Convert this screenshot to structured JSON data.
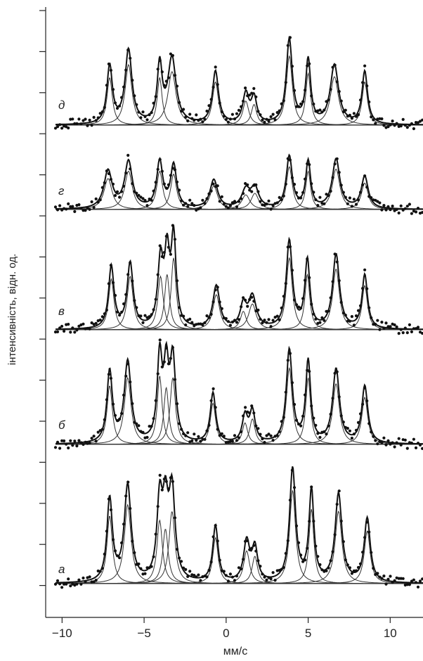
{
  "chart_data": {
    "type": "line",
    "xlabel": "мм/с",
    "ylabel": "інтенсивність, відн. од.",
    "xlim": [
      -11,
      12
    ],
    "x_ticks": [
      -10,
      -5,
      0,
      5,
      10
    ],
    "x_tick_labels": [
      "−10",
      "−5",
      "0",
      "5",
      "10"
    ],
    "grid": false,
    "series": [
      {
        "name": "а",
        "peaks": [
          {
            "x": -7.1,
            "h": 0.62,
            "w": 0.2
          },
          {
            "x": -6.0,
            "h": 0.72,
            "w": 0.25
          },
          {
            "x": -4.05,
            "h": 0.58,
            "w": 0.2
          },
          {
            "x": -3.7,
            "h": 0.5,
            "w": 0.2
          },
          {
            "x": -3.3,
            "h": 0.66,
            "w": 0.22
          },
          {
            "x": -0.65,
            "h": 0.42,
            "w": 0.2
          },
          {
            "x": 1.25,
            "h": 0.3,
            "w": 0.22
          },
          {
            "x": 1.75,
            "h": 0.25,
            "w": 0.2
          },
          {
            "x": 4.05,
            "h": 0.85,
            "w": 0.22
          },
          {
            "x": 5.2,
            "h": 0.68,
            "w": 0.18
          },
          {
            "x": 6.85,
            "h": 0.66,
            "w": 0.25
          },
          {
            "x": 8.6,
            "h": 0.48,
            "w": 0.22
          }
        ]
      },
      {
        "name": "б",
        "peaks": [
          {
            "x": -7.1,
            "h": 0.6,
            "w": 0.2
          },
          {
            "x": -6.0,
            "h": 0.68,
            "w": 0.25
          },
          {
            "x": -4.05,
            "h": 0.7,
            "w": 0.18
          },
          {
            "x": -3.65,
            "h": 0.58,
            "w": 0.18
          },
          {
            "x": -3.25,
            "h": 0.68,
            "w": 0.2
          },
          {
            "x": -0.8,
            "h": 0.42,
            "w": 0.2
          },
          {
            "x": 1.15,
            "h": 0.22,
            "w": 0.2
          },
          {
            "x": 1.6,
            "h": 0.26,
            "w": 0.2
          },
          {
            "x": 3.85,
            "h": 0.78,
            "w": 0.22
          },
          {
            "x": 5.0,
            "h": 0.68,
            "w": 0.18
          },
          {
            "x": 6.7,
            "h": 0.62,
            "w": 0.25
          },
          {
            "x": 8.45,
            "h": 0.48,
            "w": 0.22
          }
        ]
      },
      {
        "name": "в",
        "peaks": [
          {
            "x": -7.0,
            "h": 0.55,
            "w": 0.2
          },
          {
            "x": -5.85,
            "h": 0.58,
            "w": 0.22
          },
          {
            "x": -4.0,
            "h": 0.58,
            "w": 0.2
          },
          {
            "x": -3.6,
            "h": 0.6,
            "w": 0.18
          },
          {
            "x": -3.2,
            "h": 0.78,
            "w": 0.18
          },
          {
            "x": -0.6,
            "h": 0.38,
            "w": 0.25
          },
          {
            "x": 1.05,
            "h": 0.2,
            "w": 0.22
          },
          {
            "x": 1.6,
            "h": 0.28,
            "w": 0.28
          },
          {
            "x": 3.85,
            "h": 0.78,
            "w": 0.22
          },
          {
            "x": 4.95,
            "h": 0.6,
            "w": 0.18
          },
          {
            "x": 6.7,
            "h": 0.66,
            "w": 0.25
          },
          {
            "x": 8.45,
            "h": 0.48,
            "w": 0.2
          }
        ]
      },
      {
        "name": "г",
        "peaks": [
          {
            "x": -7.2,
            "h": 0.42,
            "w": 0.3
          },
          {
            "x": -5.95,
            "h": 0.52,
            "w": 0.28
          },
          {
            "x": -4.05,
            "h": 0.52,
            "w": 0.22
          },
          {
            "x": -3.2,
            "h": 0.48,
            "w": 0.22
          },
          {
            "x": -0.75,
            "h": 0.32,
            "w": 0.28
          },
          {
            "x": 1.2,
            "h": 0.2,
            "w": 0.3
          },
          {
            "x": 1.75,
            "h": 0.22,
            "w": 0.28
          },
          {
            "x": 3.85,
            "h": 0.58,
            "w": 0.22
          },
          {
            "x": 5.0,
            "h": 0.52,
            "w": 0.18
          },
          {
            "x": 6.7,
            "h": 0.55,
            "w": 0.28
          },
          {
            "x": 8.45,
            "h": 0.36,
            "w": 0.25
          }
        ]
      },
      {
        "name": "д",
        "peaks": [
          {
            "x": -7.1,
            "h": 0.55,
            "w": 0.2
          },
          {
            "x": -5.95,
            "h": 0.7,
            "w": 0.25
          },
          {
            "x": -4.05,
            "h": 0.55,
            "w": 0.18
          },
          {
            "x": -3.3,
            "h": 0.62,
            "w": 0.3
          },
          {
            "x": -0.65,
            "h": 0.5,
            "w": 0.22
          },
          {
            "x": 1.2,
            "h": 0.28,
            "w": 0.22
          },
          {
            "x": 1.7,
            "h": 0.24,
            "w": 0.2
          },
          {
            "x": 3.85,
            "h": 0.8,
            "w": 0.22
          },
          {
            "x": 5.0,
            "h": 0.6,
            "w": 0.18
          },
          {
            "x": 6.6,
            "h": 0.56,
            "w": 0.3
          },
          {
            "x": 8.45,
            "h": 0.5,
            "w": 0.2
          }
        ]
      }
    ]
  }
}
